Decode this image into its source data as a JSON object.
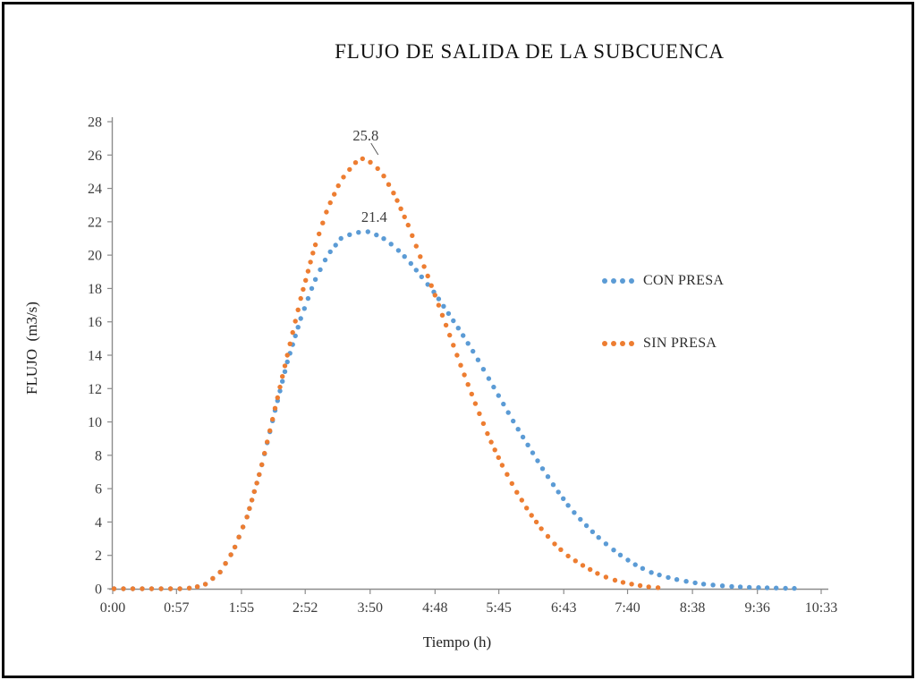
{
  "colors": {
    "con_presa": "#5B9BD5",
    "sin_presa": "#ED7D31",
    "axis": "#8c8c8c",
    "text": "#3d3d3d",
    "frame_border": "#000000"
  },
  "chart_data": {
    "type": "line",
    "style": "dotted",
    "title": "FLUJO DE SALIDA DE LA SUBCUENCA",
    "xlabel": "Tiempo (h)",
    "ylabel": "FLUJO  (m3/s)",
    "x_tick_labels": [
      "0:00",
      "0:57",
      "1:55",
      "2:52",
      "3:50",
      "4:48",
      "5:45",
      "6:43",
      "7:40",
      "8:38",
      "9:36",
      "10:33"
    ],
    "x_tick_hours": [
      0,
      0.95,
      1.9167,
      2.8667,
      3.8333,
      4.8,
      5.75,
      6.7167,
      7.6667,
      8.6333,
      9.6,
      10.55
    ],
    "ylim": [
      0,
      28
    ],
    "y_tick_step": 2,
    "grid": false,
    "legend_position": "right-center",
    "series": [
      {
        "name": "CON PRESA",
        "color": "#5B9BD5",
        "peak_label": "21.4",
        "points": [
          [
            0,
            0
          ],
          [
            0.6,
            0
          ],
          [
            1.0,
            0
          ],
          [
            1.2,
            0.05
          ],
          [
            1.4,
            0.3
          ],
          [
            1.6,
            1.0
          ],
          [
            1.8,
            2.3
          ],
          [
            2.0,
            4.3
          ],
          [
            2.2,
            7.1
          ],
          [
            2.4,
            10.4
          ],
          [
            2.6,
            13.6
          ],
          [
            2.8,
            16.2
          ],
          [
            3.0,
            18.4
          ],
          [
            3.2,
            20.0
          ],
          [
            3.4,
            21.0
          ],
          [
            3.6,
            21.35
          ],
          [
            3.8,
            21.4
          ],
          [
            4.0,
            21.1
          ],
          [
            4.2,
            20.5
          ],
          [
            4.4,
            19.7
          ],
          [
            4.6,
            18.7
          ],
          [
            4.8,
            17.7
          ],
          [
            5.0,
            16.5
          ],
          [
            5.2,
            15.3
          ],
          [
            5.4,
            14.0
          ],
          [
            5.6,
            12.6
          ],
          [
            5.8,
            11.2
          ],
          [
            6.0,
            9.8
          ],
          [
            6.2,
            8.5
          ],
          [
            6.4,
            7.2
          ],
          [
            6.6,
            6.0
          ],
          [
            6.8,
            4.9
          ],
          [
            7.0,
            4.0
          ],
          [
            7.2,
            3.2
          ],
          [
            7.4,
            2.5
          ],
          [
            7.6,
            1.9
          ],
          [
            7.8,
            1.4
          ],
          [
            8.0,
            1.0
          ],
          [
            8.2,
            0.75
          ],
          [
            8.4,
            0.55
          ],
          [
            8.6,
            0.4
          ],
          [
            8.8,
            0.28
          ],
          [
            9.0,
            0.2
          ],
          [
            9.2,
            0.14
          ],
          [
            9.4,
            0.1
          ],
          [
            9.6,
            0.07
          ],
          [
            9.8,
            0.05
          ],
          [
            10.0,
            0.03
          ],
          [
            10.15,
            0.02
          ]
        ]
      },
      {
        "name": "SIN PRESA",
        "color": "#ED7D31",
        "peak_label": "25.8",
        "points": [
          [
            0,
            0
          ],
          [
            0.6,
            0
          ],
          [
            1.0,
            0
          ],
          [
            1.2,
            0.05
          ],
          [
            1.4,
            0.3
          ],
          [
            1.6,
            1.0
          ],
          [
            1.8,
            2.3
          ],
          [
            2.0,
            4.3
          ],
          [
            2.2,
            7.1
          ],
          [
            2.4,
            10.5
          ],
          [
            2.6,
            14.0
          ],
          [
            2.8,
            17.4
          ],
          [
            3.0,
            20.4
          ],
          [
            3.2,
            22.8
          ],
          [
            3.4,
            24.5
          ],
          [
            3.6,
            25.5
          ],
          [
            3.7,
            25.8
          ],
          [
            3.8,
            25.7
          ],
          [
            4.0,
            25.0
          ],
          [
            4.2,
            23.6
          ],
          [
            4.4,
            21.8
          ],
          [
            4.6,
            19.7
          ],
          [
            4.8,
            17.6
          ],
          [
            5.0,
            15.4
          ],
          [
            5.2,
            13.2
          ],
          [
            5.4,
            11.1
          ],
          [
            5.6,
            9.1
          ],
          [
            5.8,
            7.4
          ],
          [
            6.0,
            5.9
          ],
          [
            6.2,
            4.6
          ],
          [
            6.4,
            3.5
          ],
          [
            6.6,
            2.6
          ],
          [
            6.8,
            1.9
          ],
          [
            7.0,
            1.4
          ],
          [
            7.2,
            0.95
          ],
          [
            7.4,
            0.6
          ],
          [
            7.6,
            0.38
          ],
          [
            7.8,
            0.22
          ],
          [
            8.0,
            0.1
          ],
          [
            8.2,
            0.04
          ]
        ]
      }
    ],
    "annotations": [
      {
        "text": "25.8",
        "series": "SIN PRESA",
        "t": 3.7,
        "value": 25.8
      },
      {
        "text": "21.4",
        "series": "CON PRESA",
        "t": 3.8,
        "value": 21.4
      }
    ]
  }
}
